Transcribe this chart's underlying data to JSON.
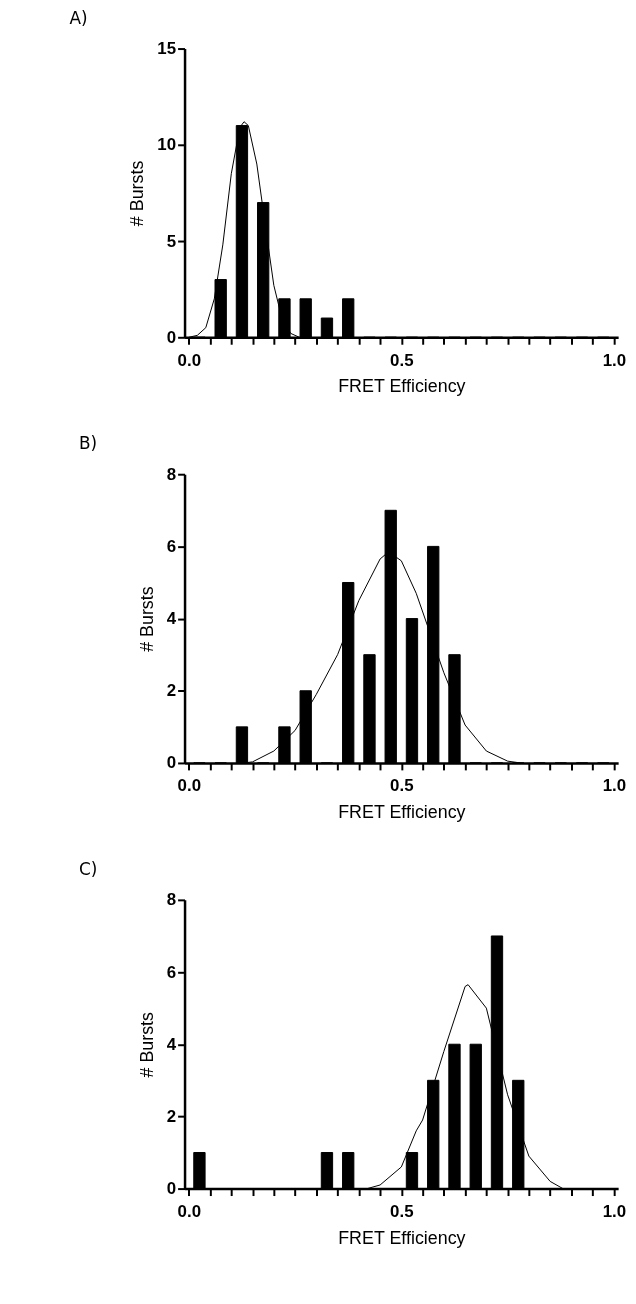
{
  "chart_data": [
    {
      "type": "histogram",
      "title": "A)",
      "xlabel": "FRET Efficiency",
      "ylabel": "# Bursts",
      "color": "#000000",
      "bins": [
        0,
        0.05,
        0.1,
        0.15,
        0.2,
        0.25,
        0.3,
        0.35,
        0.4,
        0.45,
        0.5,
        0.55,
        0.6,
        0.65,
        0.7,
        0.75,
        0.8,
        0.85,
        0.9,
        0.95,
        1.0
      ],
      "values": [
        0,
        3,
        11,
        7,
        2,
        2,
        1,
        2,
        0,
        0,
        0,
        0,
        0,
        0,
        0,
        0,
        0,
        0,
        0,
        0
      ],
      "series": [
        {
          "type": "line",
          "color": "#000000",
          "x": [
            0,
            0.02,
            0.04,
            0.06,
            0.08,
            0.1,
            0.12,
            0.13,
            0.14,
            0.16,
            0.18,
            0.2,
            0.22,
            0.24,
            0.26
          ],
          "values": [
            0,
            0.1,
            0.5,
            2,
            4.8,
            8.5,
            10.9,
            11.2,
            11,
            9,
            5.8,
            2.7,
            0.9,
            0.2,
            0
          ]
        }
      ],
      "xlim": [
        -0.01,
        1.01
      ],
      "ylim": [
        0,
        15
      ],
      "xticks": [
        {
          "value": 0,
          "label": "0.0"
        },
        {
          "value": 0.05,
          "label": null
        },
        {
          "value": 0.1,
          "label": null
        },
        {
          "value": 0.15,
          "label": null
        },
        {
          "value": 0.2,
          "label": null
        },
        {
          "value": 0.25,
          "label": null
        },
        {
          "value": 0.3,
          "label": null
        },
        {
          "value": 0.35,
          "label": null
        },
        {
          "value": 0.4,
          "label": null
        },
        {
          "value": 0.45,
          "label": null
        },
        {
          "value": 0.5,
          "label": "0.5"
        },
        {
          "value": 0.55,
          "label": null
        },
        {
          "value": 0.6,
          "label": null
        },
        {
          "value": 0.65,
          "label": null
        },
        {
          "value": 0.7,
          "label": null
        },
        {
          "value": 0.75,
          "label": null
        },
        {
          "value": 0.8,
          "label": null
        },
        {
          "value": 0.85,
          "label": null
        },
        {
          "value": 0.9,
          "label": null
        },
        {
          "value": 0.95,
          "label": null
        },
        {
          "value": 1.0,
          "label": "1.0"
        }
      ],
      "yticks": [
        0,
        5,
        10,
        15
      ]
    },
    {
      "type": "histogram",
      "title": "B)",
      "xlabel": "FRET Efficiency",
      "ylabel": "# Bursts",
      "color": "#000000",
      "bins": [
        0,
        0.05,
        0.1,
        0.15,
        0.2,
        0.25,
        0.3,
        0.35,
        0.4,
        0.45,
        0.5,
        0.55,
        0.6,
        0.65,
        0.7,
        0.75,
        0.8,
        0.85,
        0.9,
        0.95,
        1.0
      ],
      "values": [
        0,
        0,
        1,
        0,
        1,
        2,
        0,
        5,
        3,
        7,
        4,
        6,
        3,
        0,
        0,
        0,
        0,
        0,
        0,
        0
      ],
      "series": [
        {
          "type": "line",
          "color": "#000000",
          "x": [
            0.13,
            0.15,
            0.2,
            0.25,
            0.3,
            0.35,
            0.4,
            0.45,
            0.47,
            0.5,
            0.535,
            0.6,
            0.65,
            0.7,
            0.75,
            0.78
          ],
          "values": [
            0,
            0.03,
            0.33,
            0.9,
            1.9,
            3,
            4.5,
            5.65,
            5.85,
            5.6,
            4.7,
            2.5,
            1.05,
            0.33,
            0.05,
            0
          ]
        }
      ],
      "xlim": [
        -0.01,
        1.01
      ],
      "ylim": [
        0,
        8
      ],
      "xticks": [
        {
          "value": 0,
          "label": "0.0"
        },
        {
          "value": 0.05,
          "label": null
        },
        {
          "value": 0.1,
          "label": null
        },
        {
          "value": 0.15,
          "label": null
        },
        {
          "value": 0.2,
          "label": null
        },
        {
          "value": 0.25,
          "label": null
        },
        {
          "value": 0.3,
          "label": null
        },
        {
          "value": 0.35,
          "label": null
        },
        {
          "value": 0.4,
          "label": null
        },
        {
          "value": 0.45,
          "label": null
        },
        {
          "value": 0.5,
          "label": "0.5"
        },
        {
          "value": 0.55,
          "label": null
        },
        {
          "value": 0.6,
          "label": null
        },
        {
          "value": 0.65,
          "label": null
        },
        {
          "value": 0.7,
          "label": null
        },
        {
          "value": 0.75,
          "label": null
        },
        {
          "value": 0.8,
          "label": null
        },
        {
          "value": 0.85,
          "label": null
        },
        {
          "value": 0.9,
          "label": null
        },
        {
          "value": 0.95,
          "label": null
        },
        {
          "value": 1.0,
          "label": "1.0"
        }
      ],
      "yticks": [
        0,
        2,
        4,
        6,
        8
      ]
    },
    {
      "type": "histogram",
      "title": "C)",
      "xlabel": "FRET Efficiency",
      "ylabel": "# Bursts",
      "color": "#000000",
      "bins": [
        0,
        0.05,
        0.1,
        0.15,
        0.2,
        0.25,
        0.3,
        0.35,
        0.4,
        0.45,
        0.5,
        0.55,
        0.6,
        0.65,
        0.7,
        0.75,
        0.8,
        0.85,
        0.9,
        0.95,
        1.0
      ],
      "values": [
        1,
        0,
        0,
        0,
        0,
        0,
        1,
        1,
        0,
        0,
        1,
        3,
        4,
        4,
        7,
        3,
        0,
        0,
        0,
        0
      ],
      "series": [
        {
          "type": "line",
          "color": "#000000",
          "x": [
            0.42,
            0.45,
            0.5,
            0.535,
            0.55,
            0.6,
            0.65,
            0.657,
            0.7,
            0.75,
            0.8,
            0.85,
            0.88
          ],
          "values": [
            0,
            0.1,
            0.6,
            1.6,
            1.9,
            3.8,
            5.6,
            5.65,
            5.0,
            2.6,
            0.9,
            0.2,
            0
          ]
        }
      ],
      "xlim": [
        -0.01,
        1.01
      ],
      "ylim": [
        0,
        8
      ],
      "xticks": [
        {
          "value": 0,
          "label": "0.0"
        },
        {
          "value": 0.05,
          "label": null
        },
        {
          "value": 0.1,
          "label": null
        },
        {
          "value": 0.15,
          "label": null
        },
        {
          "value": 0.2,
          "label": null
        },
        {
          "value": 0.25,
          "label": null
        },
        {
          "value": 0.3,
          "label": null
        },
        {
          "value": 0.35,
          "label": null
        },
        {
          "value": 0.4,
          "label": null
        },
        {
          "value": 0.45,
          "label": null
        },
        {
          "value": 0.5,
          "label": "0.5"
        },
        {
          "value": 0.55,
          "label": null
        },
        {
          "value": 0.6,
          "label": null
        },
        {
          "value": 0.65,
          "label": null
        },
        {
          "value": 0.7,
          "label": null
        },
        {
          "value": 0.75,
          "label": null
        },
        {
          "value": 0.8,
          "label": null
        },
        {
          "value": 0.85,
          "label": null
        },
        {
          "value": 0.9,
          "label": null
        },
        {
          "value": 0.95,
          "label": null
        },
        {
          "value": 1.0,
          "label": "1.0"
        }
      ],
      "yticks": [
        0,
        2,
        4,
        6,
        8
      ]
    }
  ]
}
